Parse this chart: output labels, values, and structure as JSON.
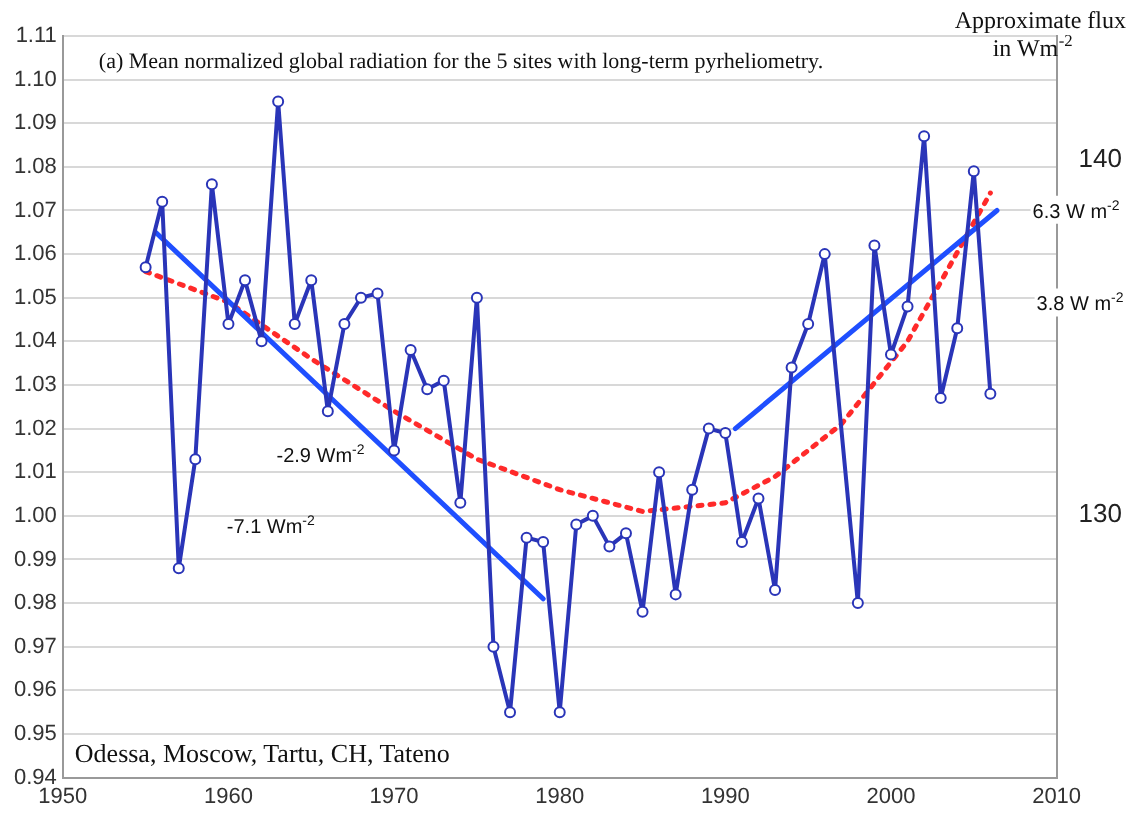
{
  "chart_data": {
    "type": "line",
    "title": "(a) Mean normalized global radiation for the 5 sites with long-term pyrheliometry.",
    "y2label": "Approximate flux in Wm$^{-2}$",
    "xlim": [
      1950,
      2010
    ],
    "xticks": [
      1950,
      1960,
      1970,
      1980,
      1990,
      2000,
      2010
    ],
    "ylim": [
      0.94,
      1.11
    ],
    "yticks": [
      0.94,
      0.95,
      0.96,
      0.97,
      0.98,
      0.99,
      {
        "value": 1.0,
        "label": "1.00"
      },
      1.01,
      1.02,
      1.03,
      1.04,
      1.05,
      1.06,
      1.07,
      1.08,
      1.09,
      {
        "value": 1.1,
        "label": "1.10"
      },
      1.11
    ],
    "y2lim": [
      122.6,
      143.5
    ],
    "y2ticks": [
      130,
      140
    ],
    "grid": "y",
    "legend": false,
    "series": [
      {
        "color": "#2a35b8",
        "marker": "circle",
        "line_style": "solid",
        "x": [
          1955,
          1956,
          1957,
          1958,
          1959,
          1960,
          1961,
          1962,
          1963,
          1964,
          1965,
          1966,
          1967,
          1968,
          1969,
          1970,
          1971,
          1972,
          1973,
          1974,
          1975,
          1976,
          1977,
          1978,
          1979,
          1980,
          1981,
          1982,
          1983,
          1984,
          1985,
          1986,
          1987,
          1988,
          1989,
          1990,
          1991,
          1992,
          1993,
          1994,
          1995,
          1996,
          1998,
          1999,
          2000,
          2001,
          2002,
          2003,
          2004,
          2005,
          2006
        ],
        "values": [
          1.057,
          1.072,
          0.988,
          1.013,
          1.076,
          1.044,
          1.054,
          1.04,
          1.095,
          1.044,
          1.054,
          1.024,
          1.044,
          1.05,
          1.051,
          1.015,
          1.038,
          1.029,
          1.031,
          1.003,
          1.05,
          0.97,
          0.955,
          0.995,
          0.994,
          0.955,
          0.998,
          1.0,
          0.993,
          0.996,
          0.978,
          1.01,
          0.982,
          1.006,
          1.02,
          1.019,
          0.994,
          1.004,
          0.983,
          1.034,
          1.044,
          1.06,
          0.98,
          1.062,
          1.037,
          1.048,
          1.087,
          1.027,
          1.043,
          1.079,
          1.028
        ]
      },
      {
        "color": "#1f4fff",
        "marker": "none",
        "line_style": "solid",
        "x": [
          1955.6,
          1979.0
        ],
        "values": [
          1.065,
          0.981
        ]
      },
      {
        "color": "#1f4fff",
        "marker": "none",
        "line_style": "solid",
        "x": [
          1990.6,
          2006.4
        ],
        "values": [
          1.02,
          1.07
        ]
      },
      {
        "color": "#ff2a2a",
        "marker": "none",
        "line_style": "dotted",
        "x": [
          1955,
          1960,
          1965,
          1970,
          1975,
          1980,
          1985,
          1990,
          1993,
          1997,
          2001,
          2006
        ],
        "values": [
          1.056,
          1.049,
          1.036,
          1.024,
          1.013,
          1.006,
          1.001,
          1.003,
          1.009,
          1.021,
          1.04,
          1.074
        ]
      }
    ],
    "annotations": [
      "-2.9 Wm$^{-2}$",
      "-7.1 Wm$^{-2}$",
      "6.3 W m$^{-2}$",
      "3.8 W m$^{-2}$",
      "Odessa, Moscow, Tartu, CH, Tateno"
    ]
  }
}
